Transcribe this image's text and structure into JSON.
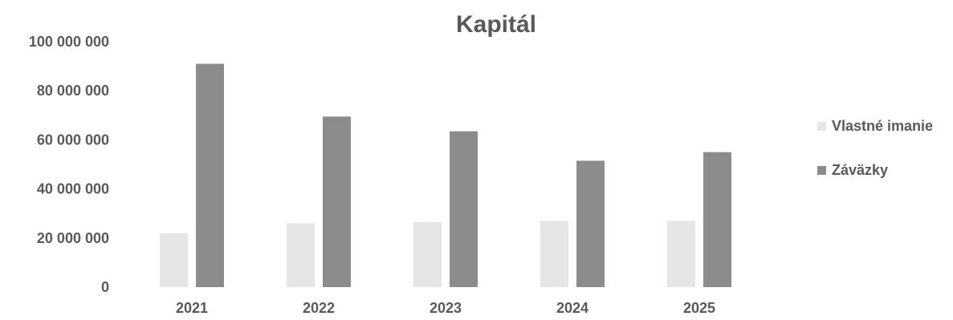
{
  "chart_data": {
    "type": "bar",
    "title": "Kapitál",
    "xlabel": "",
    "ylabel": "",
    "categories": [
      "2021",
      "2022",
      "2023",
      "2024",
      "2025"
    ],
    "series": [
      {
        "name": "Vlastné imanie",
        "color": "#e6e6e6",
        "values": [
          22000000,
          26000000,
          26500000,
          27000000,
          27000000
        ]
      },
      {
        "name": "Záväzky",
        "color": "#8c8c8c",
        "values": [
          91000000,
          69500000,
          63500000,
          51500000,
          55000000
        ]
      }
    ],
    "yticks": [
      "0",
      "20 000 000",
      "40 000 000",
      "60 000 000",
      "80 000 000",
      "100 000 000"
    ],
    "ylim": [
      0,
      100000000
    ],
    "grid": false,
    "legend_position": "right"
  }
}
